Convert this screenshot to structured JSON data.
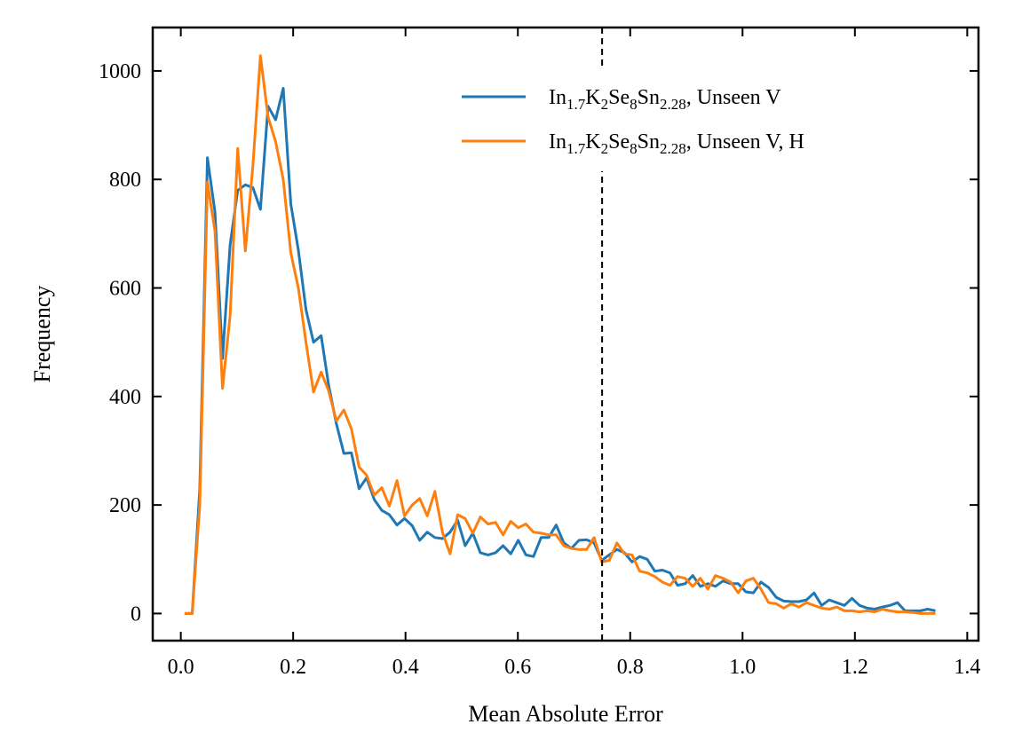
{
  "chart_data": {
    "type": "line",
    "xlabel": "Mean Absolute Error",
    "ylabel": "Frequency",
    "xlim": [
      -0.05,
      1.42
    ],
    "ylim": [
      -50,
      1080
    ],
    "xticks": [
      0.0,
      0.2,
      0.4,
      0.6,
      0.8,
      1.0,
      1.2,
      1.4
    ],
    "xtick_labels": [
      "0.0",
      "0.2",
      "0.4",
      "0.6",
      "0.8",
      "1.0",
      "1.2",
      "1.4"
    ],
    "yticks": [
      0,
      200,
      400,
      600,
      800,
      1000
    ],
    "ytick_labels": [
      "0",
      "200",
      "400",
      "600",
      "800",
      "1000"
    ],
    "grid": false,
    "legend_position": "top-right",
    "vline": {
      "x": 0.75,
      "style": "dashed",
      "color": "#000000"
    },
    "series": [
      {
        "name": "In1.7K2Se8Sn2.28, Unseen V",
        "label_parts": [
          {
            "t": "In",
            "sub": false
          },
          {
            "t": "1.7",
            "sub": true
          },
          {
            "t": "K",
            "sub": false
          },
          {
            "t": "2",
            "sub": true
          },
          {
            "t": "Se",
            "sub": false
          },
          {
            "t": "8",
            "sub": true
          },
          {
            "t": "Sn",
            "sub": false
          },
          {
            "t": "2.28",
            "sub": true
          },
          {
            "t": ", Unseen V",
            "sub": false
          }
        ],
        "color": "#1f77b4",
        "x": [
          0.0068,
          0.0203,
          0.0338,
          0.0473,
          0.0608,
          0.0743,
          0.0878,
          0.1013,
          0.1148,
          0.1283,
          0.1418,
          0.1553,
          0.1688,
          0.1823,
          0.1958,
          0.2093,
          0.2228,
          0.2363,
          0.2498,
          0.2633,
          0.2768,
          0.2903,
          0.3038,
          0.3173,
          0.3308,
          0.3443,
          0.3578,
          0.3713,
          0.3848,
          0.3983,
          0.4118,
          0.4253,
          0.4388,
          0.4523,
          0.4658,
          0.4793,
          0.4928,
          0.5063,
          0.5198,
          0.5333,
          0.5468,
          0.5603,
          0.5738,
          0.5873,
          0.6008,
          0.6143,
          0.6278,
          0.6413,
          0.6548,
          0.6683,
          0.6818,
          0.6953,
          0.7088,
          0.7223,
          0.7358,
          0.7493,
          0.7628,
          0.7763,
          0.7898,
          0.8033,
          0.8168,
          0.8303,
          0.8438,
          0.8573,
          0.8708,
          0.8843,
          0.8978,
          0.9113,
          0.9248,
          0.9383,
          0.9518,
          0.9653,
          0.9788,
          0.9923,
          1.0058,
          1.0193,
          1.0328,
          1.0463,
          1.0598,
          1.0733,
          1.0868,
          1.1003,
          1.1138,
          1.1273,
          1.1408,
          1.1543,
          1.1678,
          1.1813,
          1.1948,
          1.2083,
          1.2218,
          1.2353,
          1.2488,
          1.2623,
          1.2758,
          1.2893,
          1.3028,
          1.3163,
          1.3298,
          1.3433
        ],
        "values": [
          0,
          0,
          230,
          840,
          740,
          470,
          680,
          780,
          790,
          785,
          745,
          935,
          910,
          968,
          755,
          670,
          560,
          500,
          512,
          420,
          350,
          295,
          296,
          230,
          250,
          210,
          190,
          182,
          163,
          175,
          162,
          135,
          150,
          140,
          138,
          150,
          172,
          125,
          148,
          112,
          108,
          112,
          125,
          110,
          135,
          108,
          105,
          140,
          140,
          163,
          130,
          120,
          135,
          136,
          130,
          98,
          108,
          118,
          112,
          95,
          105,
          100,
          78,
          80,
          75,
          52,
          55,
          70,
          50,
          55,
          50,
          60,
          55,
          55,
          40,
          38,
          58,
          48,
          30,
          23,
          22,
          22,
          25,
          38,
          15,
          25,
          20,
          15,
          28,
          15,
          10,
          8,
          12,
          15,
          20,
          5,
          5,
          5,
          8,
          5
        ]
      },
      {
        "name": "In1.7K2Se8Sn2.28, Unseen V, H",
        "label_parts": [
          {
            "t": "In",
            "sub": false
          },
          {
            "t": "1.7",
            "sub": true
          },
          {
            "t": "K",
            "sub": false
          },
          {
            "t": "2",
            "sub": true
          },
          {
            "t": "Se",
            "sub": false
          },
          {
            "t": "8",
            "sub": true
          },
          {
            "t": "Sn",
            "sub": false
          },
          {
            "t": "2.28",
            "sub": true
          },
          {
            "t": ", Unseen V, H",
            "sub": false
          }
        ],
        "color": "#ff7f0e",
        "x": [
          0.0068,
          0.0203,
          0.0338,
          0.0473,
          0.0608,
          0.0743,
          0.0878,
          0.1013,
          0.1148,
          0.1283,
          0.1418,
          0.1553,
          0.1688,
          0.1823,
          0.1958,
          0.2093,
          0.2228,
          0.2363,
          0.2498,
          0.2633,
          0.2768,
          0.2903,
          0.3038,
          0.3173,
          0.3308,
          0.3443,
          0.3578,
          0.3713,
          0.3848,
          0.3983,
          0.4118,
          0.4253,
          0.4388,
          0.4523,
          0.4658,
          0.4793,
          0.4928,
          0.5063,
          0.5198,
          0.5333,
          0.5468,
          0.5603,
          0.5738,
          0.5873,
          0.6008,
          0.6143,
          0.6278,
          0.6413,
          0.6548,
          0.6683,
          0.6818,
          0.6953,
          0.7088,
          0.7223,
          0.7358,
          0.7493,
          0.7628,
          0.7763,
          0.7898,
          0.8033,
          0.8168,
          0.8303,
          0.8438,
          0.8573,
          0.8708,
          0.8843,
          0.8978,
          0.9113,
          0.9248,
          0.9383,
          0.9518,
          0.9653,
          0.9788,
          0.9923,
          1.0058,
          1.0193,
          1.0328,
          1.0463,
          1.0598,
          1.0733,
          1.0868,
          1.1003,
          1.1138,
          1.1273,
          1.1408,
          1.1543,
          1.1678,
          1.1813,
          1.1948,
          1.2083,
          1.2218,
          1.2353,
          1.2488,
          1.2623,
          1.2758,
          1.2893,
          1.3028,
          1.3163,
          1.3298,
          1.3433
        ],
        "values": [
          0,
          0,
          200,
          795,
          705,
          415,
          550,
          857,
          668,
          825,
          1028,
          915,
          870,
          800,
          665,
          600,
          500,
          408,
          445,
          410,
          355,
          375,
          340,
          270,
          255,
          218,
          232,
          198,
          245,
          180,
          200,
          212,
          180,
          225,
          150,
          110,
          182,
          175,
          148,
          178,
          165,
          168,
          145,
          170,
          158,
          165,
          150,
          148,
          145,
          145,
          125,
          120,
          118,
          118,
          140,
          95,
          98,
          130,
          110,
          108,
          78,
          75,
          68,
          58,
          52,
          68,
          65,
          50,
          65,
          45,
          70,
          65,
          58,
          38,
          60,
          65,
          45,
          20,
          18,
          10,
          18,
          12,
          20,
          15,
          10,
          8,
          12,
          5,
          5,
          3,
          5,
          3,
          8,
          5,
          3,
          3,
          2,
          0,
          0,
          0
        ]
      }
    ]
  }
}
